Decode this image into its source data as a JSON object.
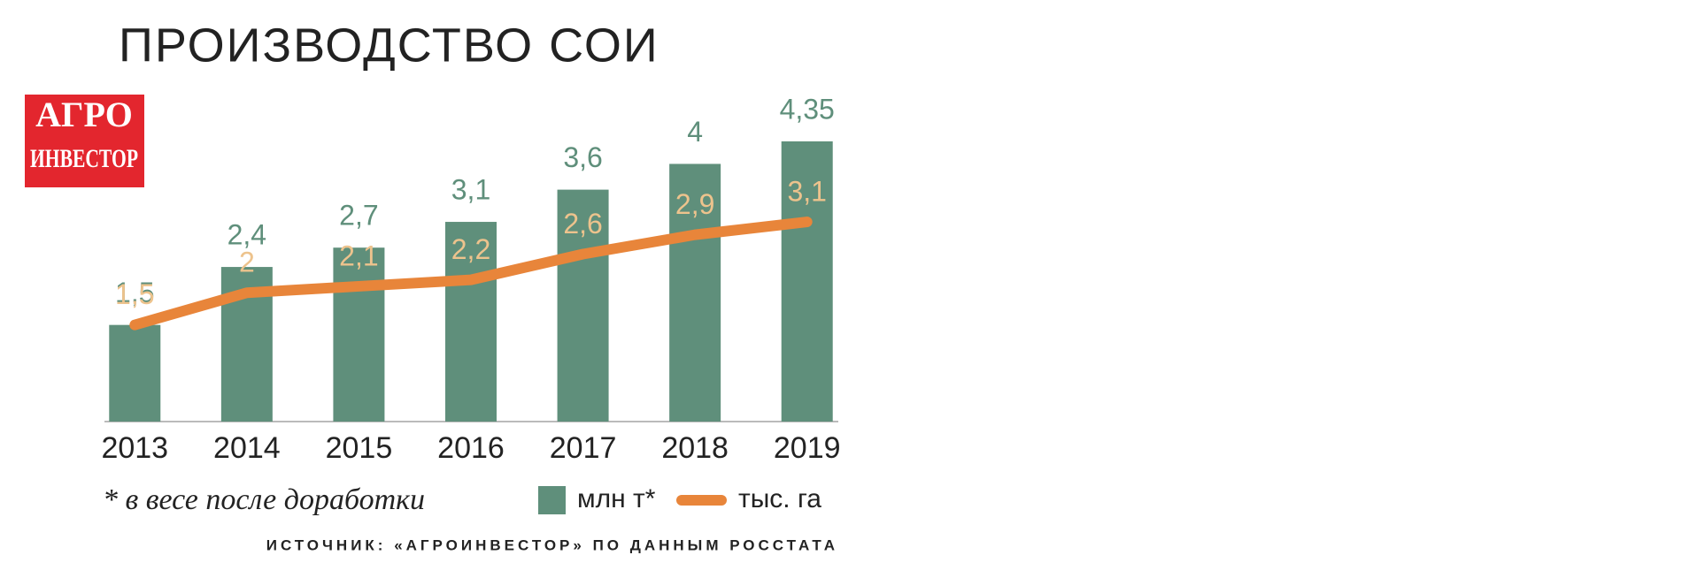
{
  "logo": {
    "lines": [
      "АГРО",
      "ИНВЕСТОР"
    ]
  },
  "chart_data": {
    "type": "bar-line",
    "title": "ПРОИЗВОДСТВО СОИ",
    "categories": [
      "2013",
      "2014",
      "2015",
      "2016",
      "2017",
      "2018",
      "2019"
    ],
    "series": [
      {
        "name": "млн т*",
        "type": "bar",
        "color": "#5f8f7b",
        "label_color": "#5f8f7b",
        "values": [
          1.5,
          2.4,
          2.7,
          3.1,
          3.6,
          4,
          4.35
        ],
        "value_labels": [
          "1,5",
          "2,4",
          "2,7",
          "3,1",
          "3,6",
          "4",
          "4,35"
        ]
      },
      {
        "name": "тыс. га",
        "type": "line",
        "color": "#e8853a",
        "label_color": "#edc38d",
        "values": [
          1.5,
          2,
          2.1,
          2.2,
          2.6,
          2.9,
          3.1
        ],
        "value_labels": [
          "1,5",
          "2",
          "2,1",
          "2,2",
          "2,6",
          "2,9",
          "3,1"
        ]
      }
    ],
    "ylim": [
      0,
      4.5
    ],
    "footnote": "* в весе после доработки",
    "source": "ИСТОЧНИК: «АГРОИНВЕСТОР» ПО ДАННЫМ РОССТАТА"
  }
}
